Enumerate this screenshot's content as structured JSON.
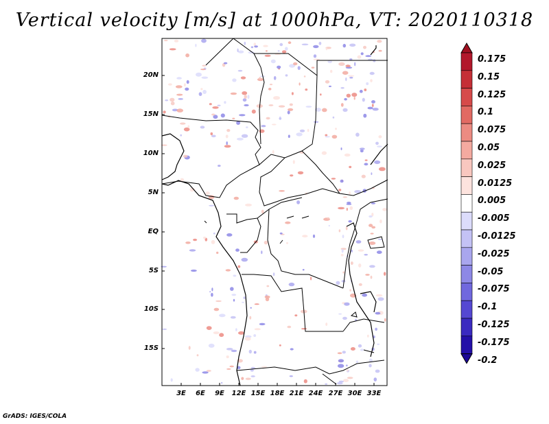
{
  "title": "Vertical velocity [m/s] at 1000hPa, VT: 2020110318",
  "credit": "GrADS: IGES/COLA",
  "lat_labels": [
    "20N",
    "15N",
    "10N",
    "5N",
    "EQ",
    "5S",
    "10S",
    "15S"
  ],
  "lon_labels": [
    "3E",
    "6E",
    "9E",
    "12E",
    "15E",
    "18E",
    "21E",
    "24E",
    "27E",
    "30E",
    "33E"
  ],
  "colorbar": {
    "labels": [
      "0.175",
      "0.15",
      "0.125",
      "0.1",
      "0.075",
      "0.05",
      "0.025",
      "0.0125",
      "0.005",
      "-0.005",
      "-0.0125",
      "-0.025",
      "-0.05",
      "-0.075",
      "-0.1",
      "-0.125",
      "-0.175",
      "-0.2"
    ],
    "colors": [
      "#b2182b",
      "#c52f36",
      "#d64a4a",
      "#e26a63",
      "#ec8b82",
      "#f4aaa0",
      "#f9c7bf",
      "#fde3de",
      "#ffffff",
      "#dcdcfb",
      "#c4c2f5",
      "#a9a6ee",
      "#8d88e6",
      "#7068de",
      "#5548d2",
      "#3a2ac0",
      "#2410a8"
    ],
    "top_color": "#a01020",
    "bottom_color": "#1c0896"
  }
}
